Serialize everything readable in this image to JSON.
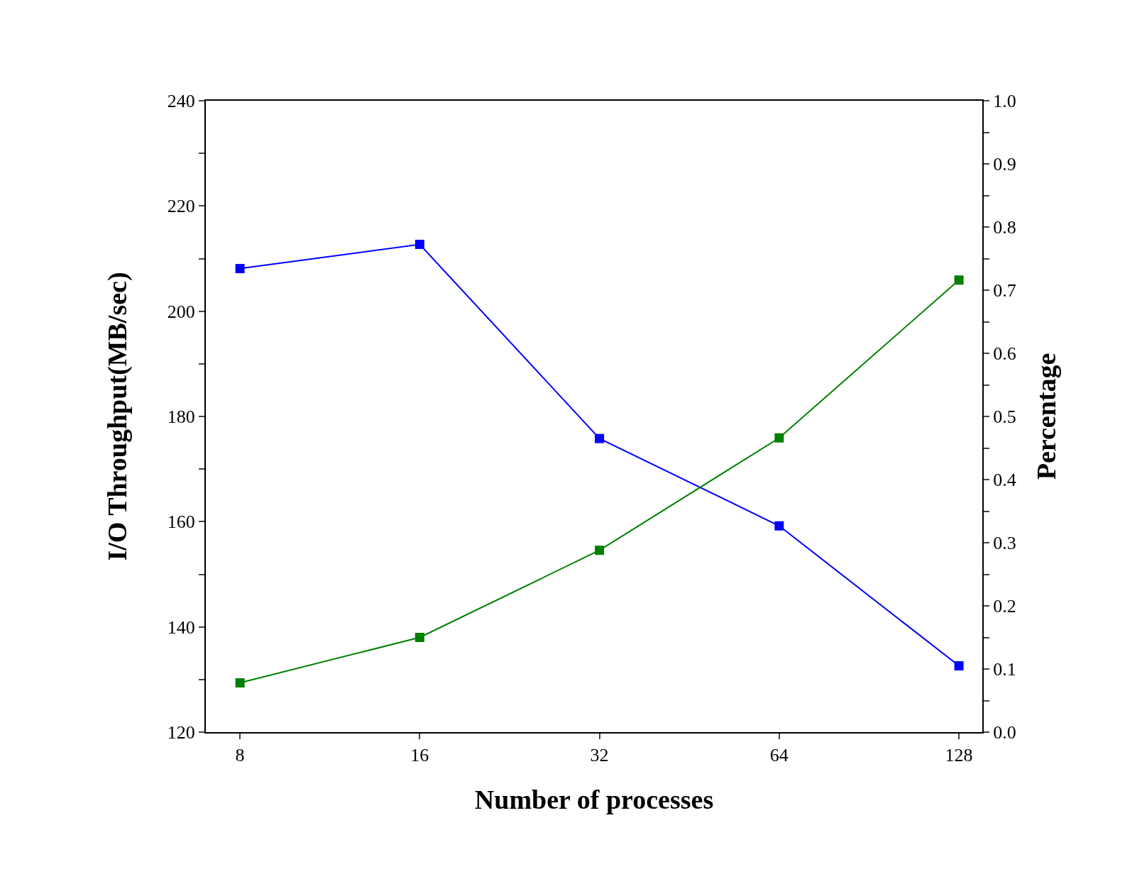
{
  "chart_data": {
    "type": "line",
    "xlabel": "Number of processes",
    "ylabel": "I/O Throughput(MB/sec)",
    "y2label": "Percentage",
    "categories": [
      "8",
      "16",
      "32",
      "64",
      "128"
    ],
    "series": [
      {
        "color": "#0000ff",
        "values": [
          208.1,
          212.7,
          175.8,
          159.2,
          132.6
        ]
      },
      {
        "color": "#008000",
        "axis": "y2",
        "values": [
          0.078,
          0.15,
          0.288,
          0.466,
          0.716
        ]
      }
    ],
    "ylim": [
      120,
      240
    ],
    "yticks": [
      120,
      {
        "value": 130,
        "label": null
      },
      140,
      {
        "value": 150,
        "label": null
      },
      160,
      {
        "value": 170,
        "label": null
      },
      180,
      {
        "value": 190,
        "label": null
      },
      200,
      {
        "value": 210,
        "label": null
      },
      220,
      {
        "value": 230,
        "label": null
      },
      240
    ],
    "y2lim": [
      0,
      1
    ],
    "y2ticks": [
      {
        "value": 0,
        "label": "0.0"
      },
      {
        "value": 0.05,
        "label": null
      },
      0.1,
      {
        "value": 0.15,
        "label": null
      },
      0.2,
      {
        "value": 0.25,
        "label": null
      },
      0.3,
      {
        "value": 0.35,
        "label": null
      },
      0.4,
      {
        "value": 0.45,
        "label": null
      },
      0.5,
      {
        "value": 0.55,
        "label": null
      },
      0.6,
      {
        "value": 0.65,
        "label": null
      },
      0.7,
      {
        "value": 0.75,
        "label": null
      },
      0.8,
      {
        "value": 0.85,
        "label": null
      },
      0.9,
      {
        "value": 0.95,
        "label": null
      },
      {
        "value": 1,
        "label": "1.0"
      }
    ],
    "marker": "square",
    "line_style": "solid"
  }
}
